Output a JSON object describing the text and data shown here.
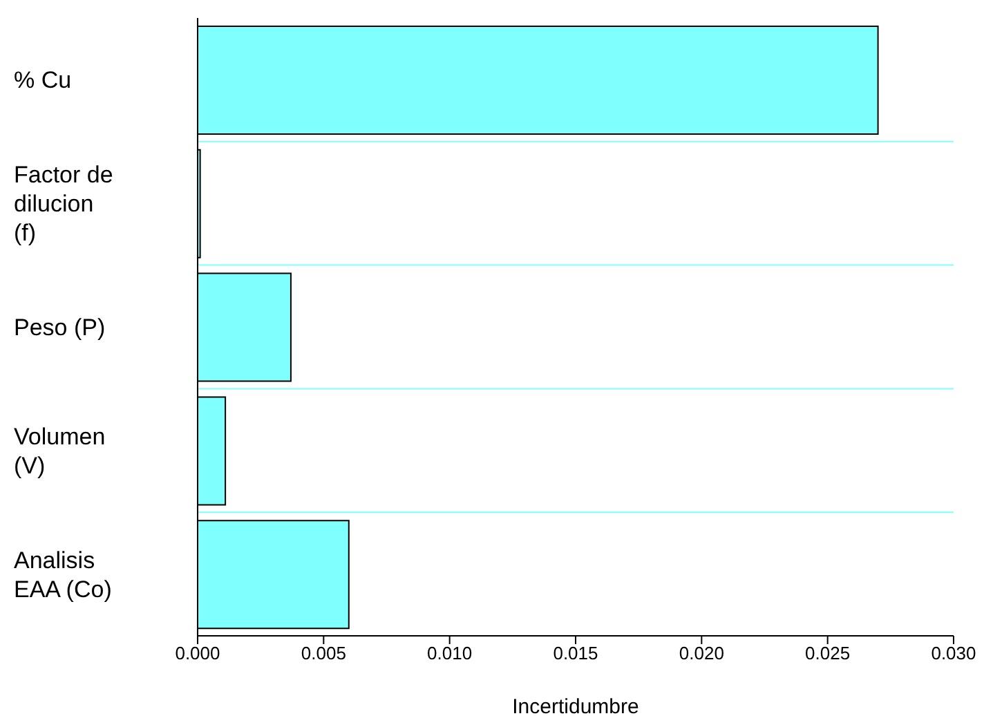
{
  "chart_data": {
    "type": "bar",
    "orientation": "horizontal",
    "xlabel": "Incertidumbre",
    "categories": [
      "% Cu",
      "Factor de dilucion (f)",
      "Peso (P)",
      "Volumen (V)",
      "Analisis EAA (Co)"
    ],
    "values": [
      0.027,
      0.0001,
      0.0037,
      0.0011,
      0.006
    ],
    "color": "#80ffff",
    "xlim": [
      0,
      0.03
    ],
    "xticks": [
      {
        "value": 0,
        "label": "0.000"
      },
      {
        "value": 0.005,
        "label": "0.005"
      },
      {
        "value": 0.01,
        "label": "0.010"
      },
      {
        "value": 0.015,
        "label": "0.015"
      },
      {
        "value": 0.02,
        "label": "0.020"
      },
      {
        "value": 0.025,
        "label": "0.025"
      },
      {
        "value": 0.03,
        "label": "0.030"
      }
    ],
    "grid": true
  }
}
